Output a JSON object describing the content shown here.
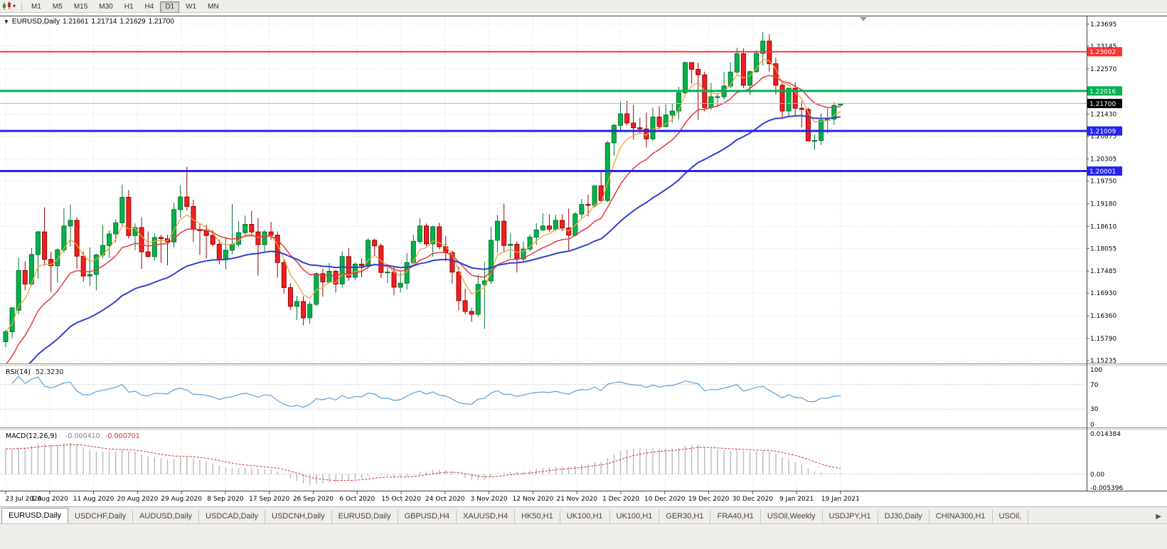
{
  "toolbar": {
    "caret_icon": "▾",
    "timeframes": [
      {
        "label": "M1",
        "active": false
      },
      {
        "label": "M5",
        "active": false
      },
      {
        "label": "M15",
        "active": false
      },
      {
        "label": "M30",
        "active": false
      },
      {
        "label": "H1",
        "active": false
      },
      {
        "label": "H4",
        "active": false
      },
      {
        "label": "D1",
        "active": true
      },
      {
        "label": "W1",
        "active": false
      },
      {
        "label": "MN",
        "active": false
      }
    ]
  },
  "chart_header": {
    "collapse_icon": "▼",
    "symbol_label": "EURUSD,Daily",
    "open": "1.21661",
    "high": "1.21714",
    "low": "1.21629",
    "close": "1.21700"
  },
  "tabs": {
    "scroll_right": "▶",
    "items": [
      {
        "label": "EURUSD,Daily",
        "active": true
      },
      {
        "label": "USDCHF,Daily",
        "active": false
      },
      {
        "label": "AUDUSD,Daily",
        "active": false
      },
      {
        "label": "USDCAD,Daily",
        "active": false
      },
      {
        "label": "USDCNH,Daily",
        "active": false
      },
      {
        "label": "EURUSD,Daily",
        "active": false
      },
      {
        "label": "GBPUSD,H4",
        "active": false
      },
      {
        "label": "XAUUSD,H4",
        "active": false
      },
      {
        "label": "HK50,H1",
        "active": false
      },
      {
        "label": "UK100,H1",
        "active": false
      },
      {
        "label": "UK100,H1",
        "active": false
      },
      {
        "label": "GER30,H1",
        "active": false
      },
      {
        "label": "FRA40,H1",
        "active": false
      },
      {
        "label": "USOil,Weekly",
        "active": false
      },
      {
        "label": "USDJPY,H1",
        "active": false
      },
      {
        "label": "DJ30,Daily",
        "active": false
      },
      {
        "label": "CHINA300,H1",
        "active": false
      },
      {
        "label": "USOil,",
        "active": false
      }
    ]
  },
  "chart_data": {
    "type": "candlestick",
    "symbol": "EURUSD",
    "period": "Daily",
    "y_max": 1.23695,
    "y_min": 1.15235,
    "y_ticks": [
      "1.23695",
      "1.23145",
      "1.22570",
      "1.21430",
      "1.20875",
      "1.20305",
      "1.19750",
      "1.19180",
      "1.18610",
      "1.18055",
      "1.17485",
      "1.16930",
      "1.16360",
      "1.15790",
      "1.15235"
    ],
    "x_labels": [
      "23 Jul 2020",
      "1 Aug 2020",
      "11 Aug 2020",
      "20 Aug 2020",
      "29 Aug 2020",
      "8 Sep 2020",
      "17 Sep 2020",
      "26 Sep 2020",
      "6 Oct 2020",
      "15 Oct 2020",
      "24 Oct 2020",
      "3 Nov 2020",
      "12 Nov 2020",
      "21 Nov 2020",
      "1 Dec 2020",
      "10 Dec 2020",
      "19 Dec 2020",
      "30 Dec 2020",
      "9 Jan 2021",
      "19 Jan 2021"
    ],
    "hlines": [
      {
        "price": 1.23002,
        "label": "1.23002",
        "color": "#ff3333",
        "width": 2
      },
      {
        "price": 1.22016,
        "label": "1.22016",
        "color": "#00b14f",
        "width": 3
      },
      {
        "price": 1.21009,
        "label": "1.21009",
        "color": "#2424ee",
        "width": 3
      },
      {
        "price": 1.20001,
        "label": "1.20001",
        "color": "#2424ee",
        "width": 3
      }
    ],
    "current_price": {
      "value": 1.217,
      "label": "1.21700",
      "box_color": "#000000",
      "line_color": "#b5b5b5"
    },
    "candle_colors": {
      "up_fill": "#00b34a",
      "up_stroke": "#00752e",
      "down_fill": "#ef2020",
      "down_stroke": "#9b0000"
    },
    "moving_averages": [
      {
        "name": "fast",
        "color": "#f0a43c"
      },
      {
        "name": "medium",
        "color": "#e23b3b"
      },
      {
        "name": "slow",
        "color": "#3040d2"
      }
    ],
    "indicators": [
      {
        "name": "RSI",
        "label": "RSI(14)",
        "value": "52.3230",
        "levels": [
          "100",
          "70",
          "30",
          "0"
        ],
        "dashed_levels": [
          70,
          30
        ],
        "line_color": "#58a0da"
      },
      {
        "name": "MACD",
        "label": "MACD(12,26,9)",
        "value_main": "-0.000410",
        "value_signal": "-0.000701",
        "scale": [
          "0.014384",
          "0.00",
          "-0.005396"
        ],
        "hist_color": "#bdbdbd",
        "signal_color": "#d23030"
      }
    ],
    "ohlc": [
      [
        1.1571,
        1.1601,
        1.1557,
        1.1596
      ],
      [
        1.1596,
        1.1658,
        1.158,
        1.1656
      ],
      [
        1.165,
        1.1782,
        1.164,
        1.175
      ],
      [
        1.175,
        1.1773,
        1.17,
        1.1716
      ],
      [
        1.1716,
        1.1807,
        1.1712,
        1.179
      ],
      [
        1.179,
        1.185,
        1.1729,
        1.1847
      ],
      [
        1.1847,
        1.1909,
        1.1762,
        1.1778
      ],
      [
        1.1778,
        1.1797,
        1.1696,
        1.1762
      ],
      [
        1.1762,
        1.1806,
        1.172,
        1.1802
      ],
      [
        1.1802,
        1.1906,
        1.1795,
        1.1862
      ],
      [
        1.1862,
        1.1916,
        1.181,
        1.1876
      ],
      [
        1.1876,
        1.1884,
        1.1754,
        1.1786
      ],
      [
        1.1786,
        1.1798,
        1.1722,
        1.1736
      ],
      [
        1.1736,
        1.1808,
        1.1711,
        1.174
      ],
      [
        1.174,
        1.1792,
        1.17,
        1.1789
      ],
      [
        1.1789,
        1.1864,
        1.1781,
        1.1813
      ],
      [
        1.1813,
        1.1851,
        1.1782,
        1.1842
      ],
      [
        1.1842,
        1.1879,
        1.182,
        1.187
      ],
      [
        1.187,
        1.1966,
        1.1863,
        1.1934
      ],
      [
        1.1934,
        1.1952,
        1.183,
        1.1838
      ],
      [
        1.1838,
        1.1868,
        1.1801,
        1.1858
      ],
      [
        1.1858,
        1.1884,
        1.1754,
        1.1797
      ],
      [
        1.1797,
        1.1848,
        1.1783,
        1.1785
      ],
      [
        1.1785,
        1.1843,
        1.1775,
        1.1833
      ],
      [
        1.1833,
        1.184,
        1.1769,
        1.183
      ],
      [
        1.183,
        1.184,
        1.1763,
        1.1822
      ],
      [
        1.1822,
        1.192,
        1.1808,
        1.1903
      ],
      [
        1.1903,
        1.1965,
        1.1883,
        1.1935
      ],
      [
        1.1935,
        1.2011,
        1.1901,
        1.1911
      ],
      [
        1.1911,
        1.1928,
        1.1822,
        1.1853
      ],
      [
        1.1853,
        1.1868,
        1.1789,
        1.185
      ],
      [
        1.185,
        1.1865,
        1.178,
        1.1838
      ],
      [
        1.1838,
        1.1852,
        1.181,
        1.1816
      ],
      [
        1.1816,
        1.1827,
        1.1765,
        1.1777
      ],
      [
        1.1777,
        1.1834,
        1.1753,
        1.1801
      ],
      [
        1.1801,
        1.1917,
        1.1791,
        1.1816
      ],
      [
        1.1816,
        1.1874,
        1.1809,
        1.1845
      ],
      [
        1.1845,
        1.1888,
        1.184,
        1.1866
      ],
      [
        1.1866,
        1.19,
        1.1836,
        1.1847
      ],
      [
        1.1847,
        1.1882,
        1.1737,
        1.1815
      ],
      [
        1.1815,
        1.1852,
        1.1795,
        1.1847
      ],
      [
        1.1847,
        1.1872,
        1.1827,
        1.1839
      ],
      [
        1.1839,
        1.1848,
        1.1732,
        1.177
      ],
      [
        1.177,
        1.1778,
        1.1692,
        1.1707
      ],
      [
        1.1707,
        1.1719,
        1.1651,
        1.166
      ],
      [
        1.166,
        1.1686,
        1.1626,
        1.1672
      ],
      [
        1.1672,
        1.1685,
        1.1612,
        1.1631
      ],
      [
        1.1631,
        1.1673,
        1.1616,
        1.1665
      ],
      [
        1.1665,
        1.1745,
        1.166,
        1.1742
      ],
      [
        1.1742,
        1.1755,
        1.1684,
        1.1721
      ],
      [
        1.1721,
        1.1769,
        1.1717,
        1.1748
      ],
      [
        1.1748,
        1.1752,
        1.1695,
        1.1716
      ],
      [
        1.1716,
        1.1798,
        1.1708,
        1.1785
      ],
      [
        1.1785,
        1.1807,
        1.1724,
        1.1733
      ],
      [
        1.1733,
        1.1771,
        1.1725,
        1.1766
      ],
      [
        1.1766,
        1.1781,
        1.1733,
        1.1762
      ],
      [
        1.1762,
        1.1831,
        1.1755,
        1.1826
      ],
      [
        1.1826,
        1.183,
        1.1786,
        1.1812
      ],
      [
        1.1812,
        1.1818,
        1.1731,
        1.1745
      ],
      [
        1.1745,
        1.1758,
        1.1718,
        1.1746
      ],
      [
        1.1746,
        1.1758,
        1.1688,
        1.1708
      ],
      [
        1.1708,
        1.1746,
        1.1695,
        1.1718
      ],
      [
        1.1718,
        1.1794,
        1.1703,
        1.177
      ],
      [
        1.177,
        1.184,
        1.176,
        1.1823
      ],
      [
        1.1823,
        1.1881,
        1.1817,
        1.1862
      ],
      [
        1.1862,
        1.1868,
        1.1811,
        1.1817
      ],
      [
        1.1817,
        1.1863,
        1.1785,
        1.186
      ],
      [
        1.186,
        1.187,
        1.1803,
        1.181
      ],
      [
        1.181,
        1.1837,
        1.1773,
        1.1795
      ],
      [
        1.1795,
        1.18,
        1.1717,
        1.1746
      ],
      [
        1.1746,
        1.1759,
        1.165,
        1.1674
      ],
      [
        1.1674,
        1.1704,
        1.164,
        1.1647
      ],
      [
        1.1647,
        1.1656,
        1.1621,
        1.164
      ],
      [
        1.164,
        1.174,
        1.1633,
        1.1715
      ],
      [
        1.1715,
        1.177,
        1.1603,
        1.1724
      ],
      [
        1.1724,
        1.186,
        1.1716,
        1.1826
      ],
      [
        1.1826,
        1.189,
        1.1795,
        1.1874
      ],
      [
        1.1874,
        1.1918,
        1.1795,
        1.1813
      ],
      [
        1.1813,
        1.1843,
        1.1781,
        1.1816
      ],
      [
        1.1816,
        1.1824,
        1.1745,
        1.1779
      ],
      [
        1.1779,
        1.1823,
        1.1772,
        1.1804
      ],
      [
        1.1804,
        1.1841,
        1.1799,
        1.1834
      ],
      [
        1.1834,
        1.1869,
        1.1814,
        1.1852
      ],
      [
        1.1852,
        1.1894,
        1.185,
        1.1862
      ],
      [
        1.1862,
        1.1891,
        1.1847,
        1.1854
      ],
      [
        1.1854,
        1.189,
        1.1849,
        1.1876
      ],
      [
        1.1876,
        1.1891,
        1.1849,
        1.1857
      ],
      [
        1.1857,
        1.1906,
        1.1799,
        1.1839
      ],
      [
        1.1839,
        1.1897,
        1.1836,
        1.1892
      ],
      [
        1.1892,
        1.193,
        1.1881,
        1.1916
      ],
      [
        1.1916,
        1.1941,
        1.1886,
        1.1914
      ],
      [
        1.1914,
        1.1964,
        1.1908,
        1.1963
      ],
      [
        1.1963,
        1.2003,
        1.1923,
        1.1926
      ],
      [
        1.1926,
        1.2076,
        1.1922,
        1.2071
      ],
      [
        1.2071,
        1.2119,
        1.2039,
        1.2115
      ],
      [
        1.2115,
        1.2175,
        1.2099,
        1.2144
      ],
      [
        1.2144,
        1.2177,
        1.2115,
        1.2121
      ],
      [
        1.2121,
        1.2166,
        1.2079,
        1.2109
      ],
      [
        1.2109,
        1.2134,
        1.2094,
        1.2106
      ],
      [
        1.2106,
        1.2147,
        1.2059,
        1.2081
      ],
      [
        1.2081,
        1.216,
        1.2076,
        1.2136
      ],
      [
        1.2136,
        1.2163,
        1.2105,
        1.2112
      ],
      [
        1.2112,
        1.2168,
        1.211,
        1.2141
      ],
      [
        1.2141,
        1.217,
        1.2121,
        1.2151
      ],
      [
        1.2151,
        1.2212,
        1.213,
        1.2197
      ],
      [
        1.2197,
        1.2275,
        1.219,
        1.2273
      ],
      [
        1.2273,
        1.2273,
        1.2219,
        1.2256
      ],
      [
        1.2256,
        1.2272,
        1.2129,
        1.2242
      ],
      [
        1.2242,
        1.225,
        1.215,
        1.216
      ],
      [
        1.216,
        1.2222,
        1.2154,
        1.2187
      ],
      [
        1.2187,
        1.2196,
        1.216,
        1.2187
      ],
      [
        1.2187,
        1.225,
        1.218,
        1.2214
      ],
      [
        1.2214,
        1.2274,
        1.2208,
        1.2249
      ],
      [
        1.2249,
        1.231,
        1.2245,
        1.2295
      ],
      [
        1.2295,
        1.2309,
        1.2209,
        1.2216
      ],
      [
        1.2216,
        1.2254,
        1.2192,
        1.225
      ],
      [
        1.225,
        1.2304,
        1.2247,
        1.2296
      ],
      [
        1.2296,
        1.2349,
        1.2265,
        1.2327
      ],
      [
        1.2327,
        1.2344,
        1.225,
        1.227
      ],
      [
        1.227,
        1.2285,
        1.2193,
        1.2216
      ],
      [
        1.2216,
        1.2223,
        1.2132,
        1.2151
      ],
      [
        1.2151,
        1.221,
        1.2137,
        1.2208
      ],
      [
        1.2208,
        1.2223,
        1.214,
        1.2158
      ],
      [
        1.2158,
        1.2176,
        1.211,
        1.2155
      ],
      [
        1.2155,
        1.216,
        1.2075,
        1.2076
      ],
      [
        1.2076,
        1.2092,
        1.2054,
        1.2077
      ],
      [
        1.2077,
        1.2145,
        1.2066,
        1.2128
      ],
      [
        1.2128,
        1.2158,
        1.2095,
        1.2131
      ],
      [
        1.2131,
        1.2173,
        1.2116,
        1.2165
      ],
      [
        1.21661,
        1.21714,
        1.21629,
        1.217
      ]
    ]
  }
}
